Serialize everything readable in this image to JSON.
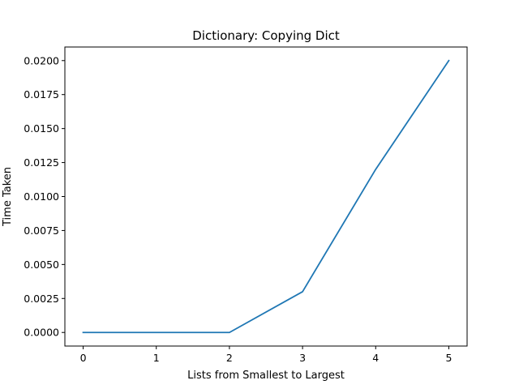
{
  "chart_data": {
    "type": "line",
    "title": "Dictionary: Copying Dict",
    "xlabel": "Lists from Smallest to Largest",
    "ylabel": "Time Taken",
    "x": [
      0,
      1,
      2,
      3,
      4,
      5
    ],
    "series": [
      {
        "values": [
          0.0,
          0.0,
          0.0,
          0.003,
          0.012,
          0.02
        ],
        "color": "#1f77b4"
      }
    ],
    "xlim": [
      -0.25,
      5.25
    ],
    "ylim": [
      -0.001,
      0.021
    ],
    "xticks": [
      0,
      1,
      2,
      3,
      4,
      5
    ],
    "xtick_labels": [
      "0",
      "1",
      "2",
      "3",
      "4",
      "5"
    ],
    "yticks": [
      0,
      0.0025,
      0.005,
      0.0075,
      0.01,
      0.0125,
      0.015,
      0.0175,
      0.02
    ],
    "ytick_labels": [
      "0.0000",
      "0.0025",
      "0.0050",
      "0.0075",
      "0.0100",
      "0.0125",
      "0.0150",
      "0.0175",
      "0.0200"
    ],
    "grid": false,
    "legend": false
  }
}
